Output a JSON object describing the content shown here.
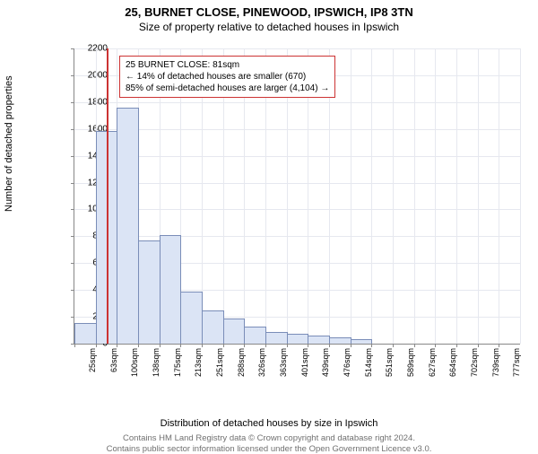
{
  "titles": {
    "line1": "25, BURNET CLOSE, PINEWOOD, IPSWICH, IP8 3TN",
    "line2": "Size of property relative to detached houses in Ipswich"
  },
  "axes": {
    "ylabel": "Number of detached properties",
    "xlabel": "Distribution of detached houses by size in Ipswich"
  },
  "footer": {
    "line1": "Contains HM Land Registry data © Crown copyright and database right 2024.",
    "line2": "Contains public sector information licensed under the Open Government Licence v3.0."
  },
  "chart": {
    "type": "histogram",
    "ylim": [
      0,
      2200
    ],
    "ytick_step": 200,
    "yticks": [
      0,
      200,
      400,
      600,
      800,
      1000,
      1200,
      1400,
      1600,
      1800,
      2000,
      2200
    ],
    "xticks": [
      "25sqm",
      "63sqm",
      "100sqm",
      "138sqm",
      "175sqm",
      "213sqm",
      "251sqm",
      "288sqm",
      "326sqm",
      "363sqm",
      "401sqm",
      "439sqm",
      "476sqm",
      "514sqm",
      "551sqm",
      "589sqm",
      "627sqm",
      "664sqm",
      "702sqm",
      "739sqm",
      "777sqm"
    ],
    "bar_values": [
      150,
      1580,
      1750,
      760,
      800,
      380,
      240,
      180,
      120,
      80,
      70,
      55,
      40,
      30,
      0,
      0,
      0,
      0,
      0,
      0,
      0
    ],
    "bar_fill": "#dbe4f5",
    "bar_stroke": "#7a8db8",
    "grid_color": "#e6e8ef",
    "axis_color": "#888888",
    "background_color": "#ffffff",
    "marker": {
      "position_sqm": 81,
      "color": "#cc3333"
    },
    "annotation": {
      "border_color": "#cc3333",
      "bg_color": "#ffffff",
      "line1": "25 BURNET CLOSE: 81sqm",
      "line2": "← 14% of detached houses are smaller (670)",
      "line3": "85% of semi-detached houses are larger (4,104) →"
    },
    "tick_fontsize": 10,
    "label_fontsize": 11,
    "title_fontsize": 13
  }
}
